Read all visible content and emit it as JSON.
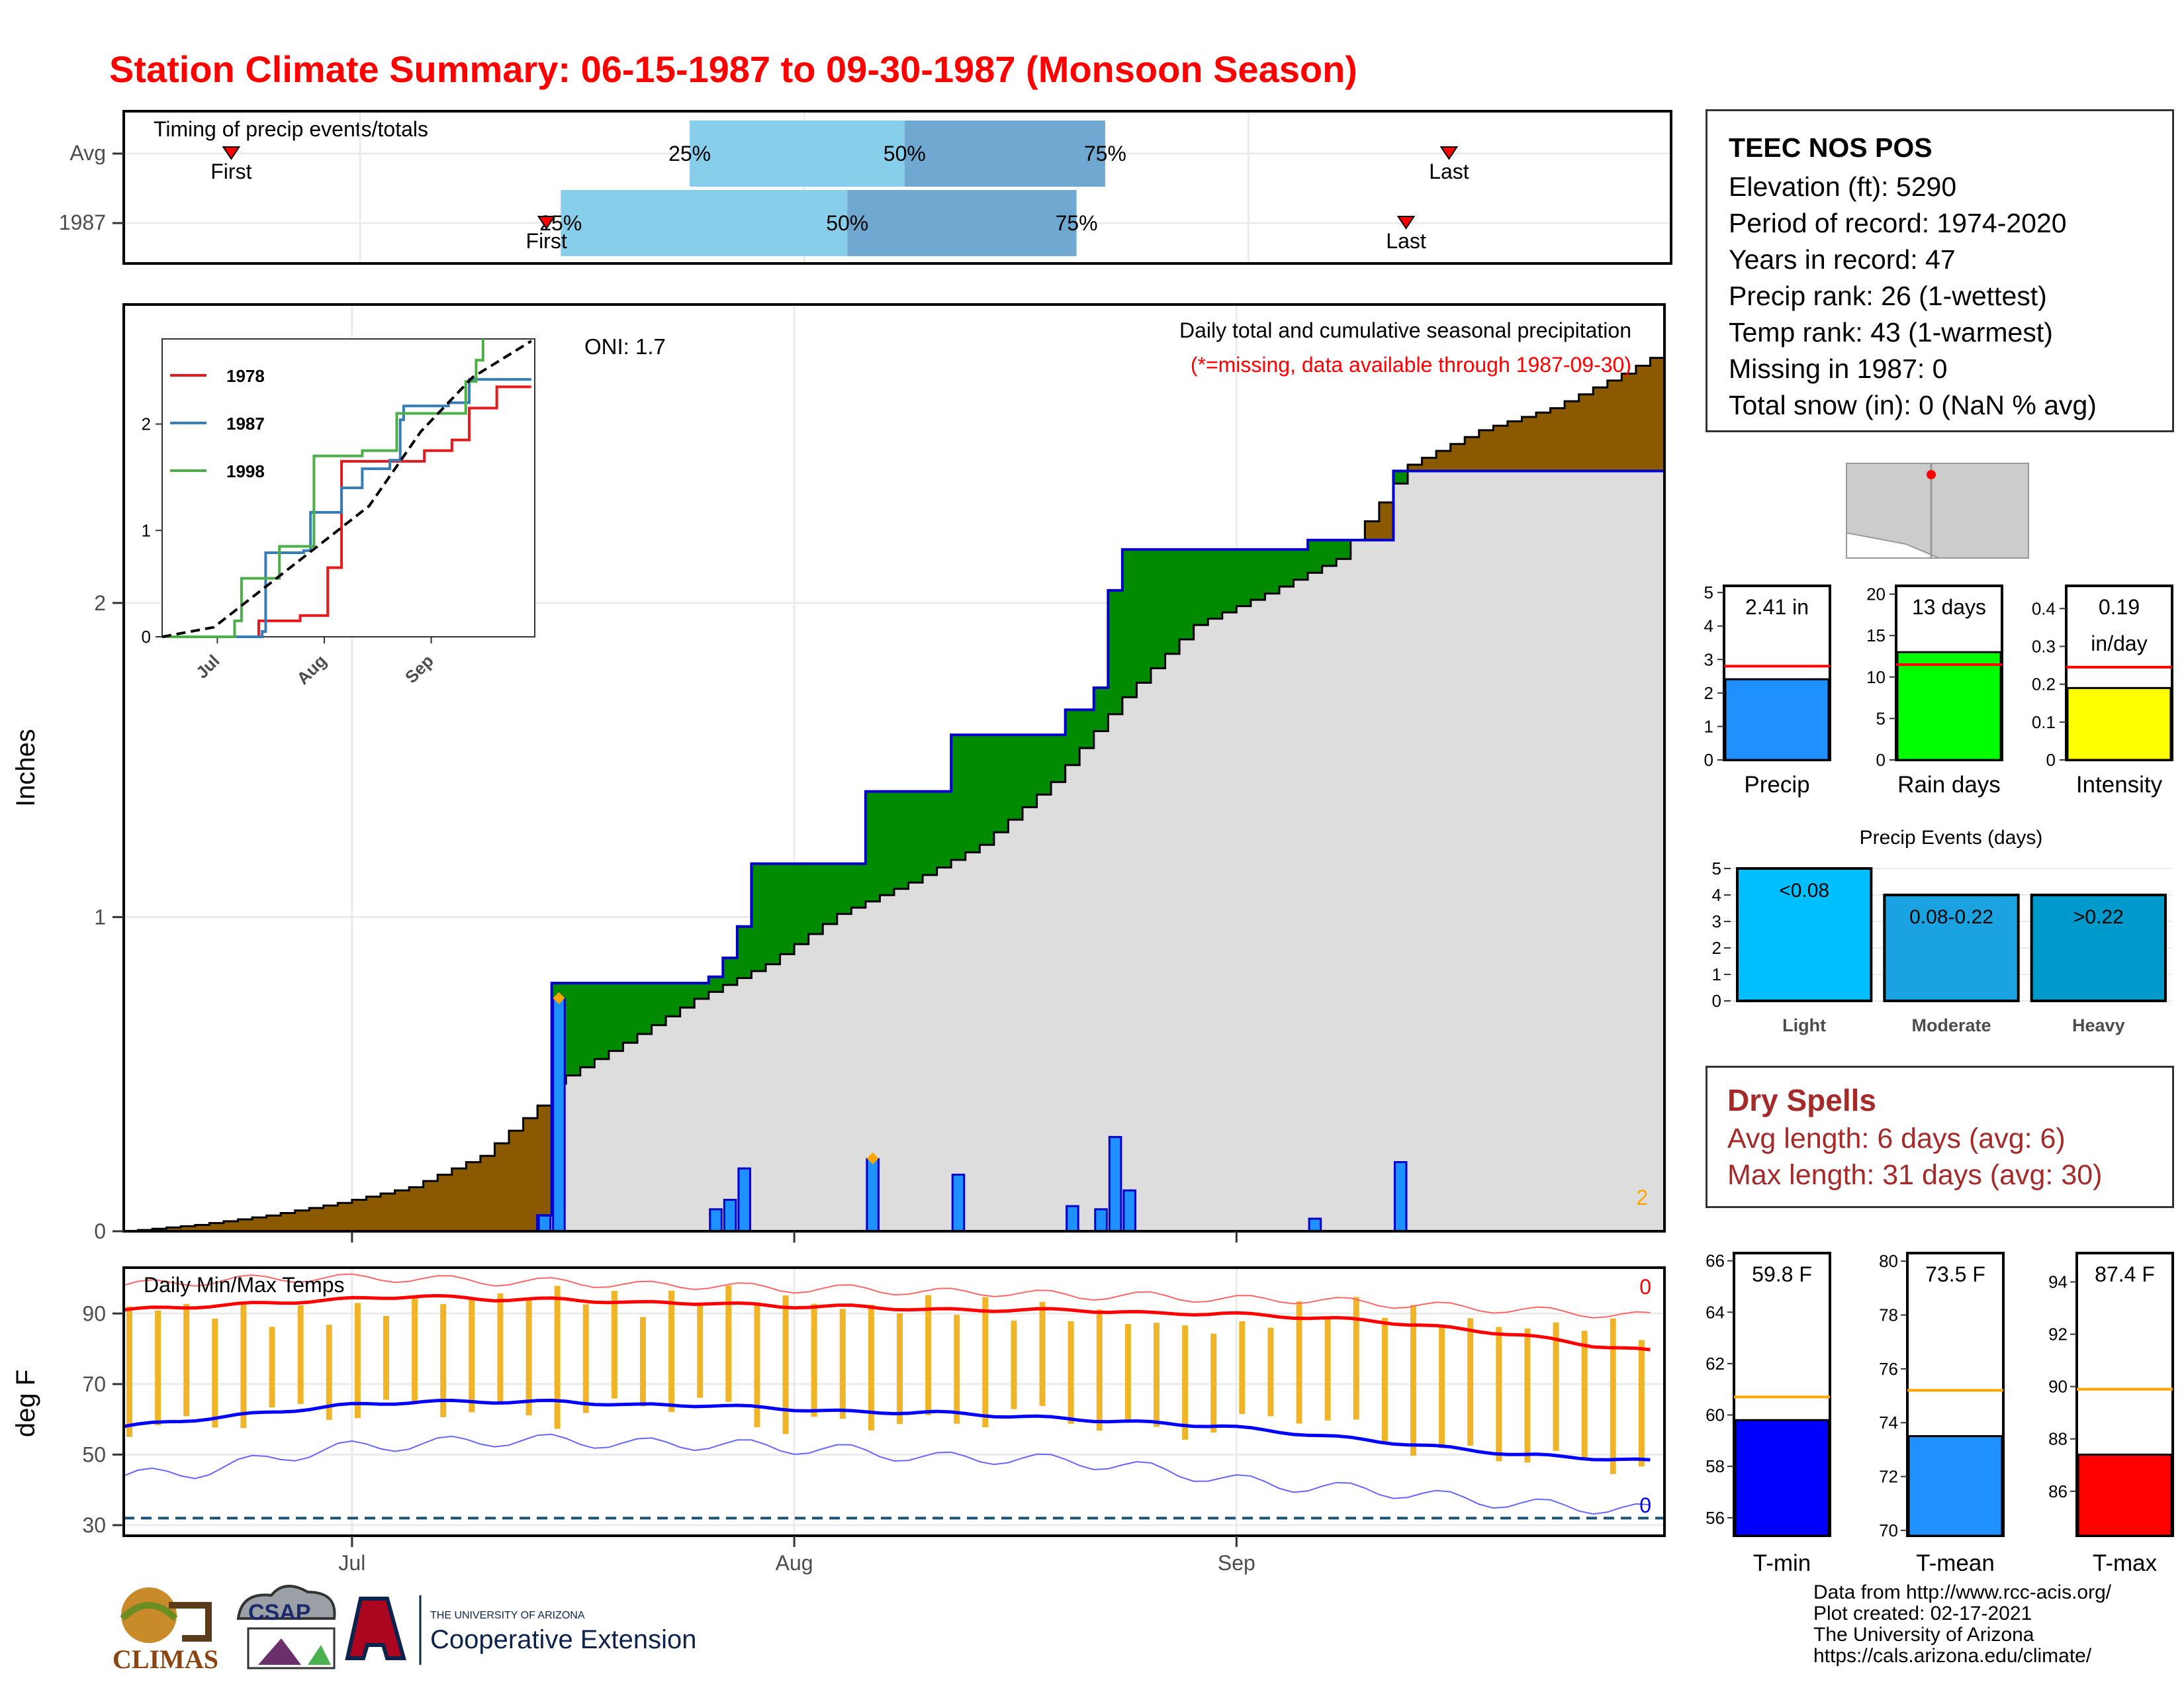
{
  "title": "Station Climate Summary: 06-15-1987 to 09-30-1987 (Monsoon Season)",
  "station": {
    "name": "TEEC NOS POS",
    "lines": [
      "Elevation (ft): 5290",
      "Period of record: 1974-2020",
      "Years in record: 47",
      "Precip rank: 26 (1-wettest)",
      "Temp rank: 43 (1-warmest)",
      "Missing in 1987: 0",
      "Total snow (in): 0 (NaN % avg)"
    ]
  },
  "dry_spells": {
    "title": "Dry Spells",
    "lines": [
      "Avg length: 6 days (avg: 6)",
      "Max length: 31 days (avg: 30)"
    ]
  },
  "credits": [
    "Data from http://www.rcc-acis.org/",
    "Plot created: 02-17-2021",
    "The University of Arizona",
    "https://cals.arizona.edu/climate/"
  ],
  "logos": {
    "climas": "CLIMAS",
    "csap": "CSAP",
    "ua_small": "THE UNIVERSITY OF ARIZONA",
    "ua_big": "Cooperative Extension"
  },
  "colors": {
    "title": "#ff0000",
    "deficit": "#8b5a00",
    "surplus": "#008b00",
    "daily_bar": "#1e90ff",
    "cum_fill": "#dddddd",
    "tmax": "#ff0000",
    "tmin": "#0000ff",
    "temp_bar": "#f0b429",
    "dry_spells": "#a52a2a"
  },
  "chart_data": [
    {
      "id": "timing",
      "type": "range",
      "title": "Timing of precip events/totals",
      "rows": [
        {
          "label": "Avg",
          "first": "06-22",
          "p25": "07-24",
          "p50": "08-08",
          "p75": "08-22",
          "last": "09-15"
        },
        {
          "label": "1987",
          "first": "07-14",
          "p25": "07-15",
          "p50": "08-04",
          "p75": "08-20",
          "last": "09-12"
        }
      ],
      "marker_labels": [
        "First",
        "Last"
      ],
      "pct_labels": [
        "25%",
        "50%",
        "75%"
      ]
    },
    {
      "id": "precip",
      "type": "area",
      "title": "Daily total and cumulative seasonal precipitation",
      "subtitle": "(*=missing, data available through 1987-09-30)",
      "oni": "ONI: 1.7",
      "ylabel": "Inches",
      "ylim": [
        0,
        2.95
      ],
      "yticks": [
        0,
        1,
        2
      ],
      "xticks": [
        {
          "label": "Jul",
          "date": "07-01"
        },
        {
          "label": "Aug",
          "date": "08-01"
        },
        {
          "label": "Sep",
          "date": "09-01"
        }
      ],
      "corner_label": "2",
      "avg_cumulative": [
        [
          "06-15",
          0.0
        ],
        [
          "06-20",
          0.02
        ],
        [
          "06-25",
          0.05
        ],
        [
          "06-30",
          0.09
        ],
        [
          "07-05",
          0.14
        ],
        [
          "07-10",
          0.24
        ],
        [
          "07-14",
          0.4
        ],
        [
          "07-15",
          0.47
        ],
        [
          "07-20",
          0.6
        ],
        [
          "07-25",
          0.74
        ],
        [
          "07-30",
          0.85
        ],
        [
          "08-04",
          1.01
        ],
        [
          "08-09",
          1.11
        ],
        [
          "08-14",
          1.23
        ],
        [
          "08-19",
          1.43
        ],
        [
          "08-24",
          1.7
        ],
        [
          "08-29",
          1.93
        ],
        [
          "09-03",
          2.03
        ],
        [
          "09-08",
          2.14
        ],
        [
          "09-13",
          2.44
        ],
        [
          "09-18",
          2.55
        ],
        [
          "09-23",
          2.62
        ],
        [
          "09-28",
          2.73
        ],
        [
          "09-30",
          2.78
        ]
      ],
      "obs_cumulative": [
        [
          "06-15",
          0.0
        ],
        [
          "07-14",
          0.05
        ],
        [
          "07-15",
          0.79
        ],
        [
          "07-25",
          0.79
        ],
        [
          "07-26",
          0.81
        ],
        [
          "07-27",
          0.87
        ],
        [
          "07-28",
          0.97
        ],
        [
          "07-29",
          1.17
        ],
        [
          "08-05",
          1.17
        ],
        [
          "08-06",
          1.4
        ],
        [
          "08-11",
          1.4
        ],
        [
          "08-12",
          1.58
        ],
        [
          "08-19",
          1.58
        ],
        [
          "08-20",
          1.66
        ],
        [
          "08-21",
          1.66
        ],
        [
          "08-22",
          1.73
        ],
        [
          "08-23",
          2.04
        ],
        [
          "08-24",
          2.17
        ],
        [
          "09-05",
          2.17
        ],
        [
          "09-06",
          2.2
        ],
        [
          "09-11",
          2.2
        ],
        [
          "09-12",
          2.42
        ],
        [
          "09-30",
          2.42
        ]
      ],
      "daily_bars": [
        {
          "date": "07-14",
          "value": 0.05
        },
        {
          "date": "07-15",
          "value": 0.74,
          "marker": true
        },
        {
          "date": "07-26",
          "value": 0.07
        },
        {
          "date": "07-27",
          "value": 0.1
        },
        {
          "date": "07-28",
          "value": 0.2
        },
        {
          "date": "08-06",
          "value": 0.23,
          "marker": true
        },
        {
          "date": "08-12",
          "value": 0.18
        },
        {
          "date": "08-20",
          "value": 0.08
        },
        {
          "date": "08-22",
          "value": 0.07
        },
        {
          "date": "08-23",
          "value": 0.3
        },
        {
          "date": "08-24",
          "value": 0.13
        },
        {
          "date": "09-06",
          "value": 0.04
        },
        {
          "date": "09-12",
          "value": 0.22
        }
      ]
    },
    {
      "id": "inset",
      "type": "line",
      "yticks": [
        0,
        1,
        2
      ],
      "ylim": [
        0,
        2.8
      ],
      "xticks": [
        "Jul",
        "Aug",
        "Sep"
      ],
      "series": [
        {
          "name": "1978",
          "color": "#e41a1c",
          "points": [
            [
              "06-15",
              0
            ],
            [
              "07-01",
              0
            ],
            [
              "07-13",
              0.15
            ],
            [
              "07-15",
              0.15
            ],
            [
              "07-25",
              0.2
            ],
            [
              "08-01",
              0.2
            ],
            [
              "08-02",
              0.65
            ],
            [
              "08-05",
              0.65
            ],
            [
              "08-06",
              1.65
            ],
            [
              "08-25",
              1.65
            ],
            [
              "08-29",
              1.65
            ],
            [
              "08-30",
              1.75
            ],
            [
              "09-03",
              1.75
            ],
            [
              "09-07",
              1.85
            ],
            [
              "09-08",
              1.85
            ],
            [
              "09-12",
              2.15
            ],
            [
              "09-20",
              2.35
            ],
            [
              "09-30",
              2.35
            ]
          ]
        },
        {
          "name": "1987",
          "color": "#377eb8",
          "points": [
            [
              "06-15",
              0
            ],
            [
              "07-14",
              0.05
            ],
            [
              "07-15",
              0.79
            ],
            [
              "07-26",
              0.81
            ],
            [
              "07-28",
              1.17
            ],
            [
              "08-06",
              1.4
            ],
            [
              "08-12",
              1.58
            ],
            [
              "08-20",
              1.66
            ],
            [
              "08-23",
              2.04
            ],
            [
              "08-24",
              2.17
            ],
            [
              "09-06",
              2.2
            ],
            [
              "09-12",
              2.42
            ],
            [
              "09-30",
              2.42
            ]
          ]
        },
        {
          "name": "1998",
          "color": "#4daf4a",
          "points": [
            [
              "06-15",
              0
            ],
            [
              "07-06",
              0.15
            ],
            [
              "07-08",
              0.55
            ],
            [
              "07-18",
              0.55
            ],
            [
              "07-19",
              0.85
            ],
            [
              "07-28",
              0.85
            ],
            [
              "07-29",
              1.7
            ],
            [
              "08-10",
              1.7
            ],
            [
              "08-12",
              1.75
            ],
            [
              "08-20",
              1.75
            ],
            [
              "08-22",
              2.1
            ],
            [
              "09-10",
              2.1
            ],
            [
              "09-11",
              2.4
            ],
            [
              "09-14",
              2.6
            ],
            [
              "09-16",
              2.8
            ]
          ]
        }
      ],
      "average": [
        [
          "06-15",
          0
        ],
        [
          "06-30",
          0.09
        ],
        [
          "07-15",
          0.47
        ],
        [
          "07-30",
          0.85
        ],
        [
          "08-14",
          1.23
        ],
        [
          "08-29",
          1.93
        ],
        [
          "09-13",
          2.44
        ],
        [
          "09-30",
          2.78
        ]
      ]
    },
    {
      "id": "temps",
      "type": "line",
      "title": "Daily Min/Max Temps",
      "ylabel": "deg F",
      "ylim": [
        27,
        103
      ],
      "yticks": [
        30,
        50,
        70,
        90
      ],
      "xticks": [
        {
          "label": "Jul",
          "date": "07-01"
        },
        {
          "label": "Aug",
          "date": "08-01"
        },
        {
          "label": "Sep",
          "date": "09-01"
        }
      ],
      "count_top": "0",
      "count_bottom": "0",
      "freeze_line": 32,
      "avg_max": [
        91,
        92,
        93,
        94,
        95,
        94,
        94,
        93,
        93,
        92,
        92,
        91,
        91,
        91,
        90,
        90,
        89,
        88,
        86,
        84,
        81,
        79
      ],
      "avg_min": [
        58,
        60,
        62,
        64,
        65,
        65,
        65,
        64,
        64,
        63,
        62,
        62,
        61,
        60,
        59,
        58,
        56,
        54,
        52,
        50,
        49,
        48
      ],
      "rec_max": [
        98,
        99,
        100,
        100,
        100,
        99,
        99,
        98,
        98,
        97,
        97,
        96,
        96,
        95,
        95,
        94,
        94,
        93,
        92,
        91,
        90,
        89
      ],
      "rec_min": [
        44,
        45,
        49,
        52,
        53,
        54,
        54,
        53,
        53,
        52,
        51,
        49,
        49,
        48,
        46,
        43,
        41,
        40,
        38,
        36,
        35,
        34
      ],
      "obs_max": [
        92,
        91,
        89,
        90,
        93,
        95,
        96,
        92,
        96,
        94,
        91,
        93,
        91,
        90,
        87,
        85,
        91,
        92,
        88,
        86,
        87,
        84
      ],
      "obs_min": [
        58,
        58,
        62,
        62,
        64,
        62,
        60,
        65,
        64,
        57,
        60,
        58,
        62,
        60,
        56,
        58,
        62,
        55,
        50,
        50,
        47,
        48
      ]
    },
    {
      "id": "precip_summary",
      "type": "bar",
      "panels": [
        {
          "label": "Precip",
          "value": 2.41,
          "avg": 2.8,
          "ylim": [
            0,
            5.2
          ],
          "yticks": [
            0,
            1,
            2,
            3,
            4,
            5
          ],
          "text1": "2.41 in",
          "text2": "",
          "color": "#1e90ff"
        },
        {
          "label": "Rain days",
          "value": 13,
          "avg": 11.5,
          "ylim": [
            0,
            21
          ],
          "yticks": [
            0,
            5,
            10,
            15,
            20
          ],
          "text1": "13 days",
          "text2": "",
          "color": "#00ff00"
        },
        {
          "label": "Intensity",
          "value": 0.19,
          "avg": 0.245,
          "ylim": [
            0,
            0.46
          ],
          "yticks": [
            0.0,
            0.1,
            0.2,
            0.3,
            0.4
          ],
          "text1": "0.19",
          "text2": "in/day",
          "color": "#ffff00"
        }
      ]
    },
    {
      "id": "precip_events",
      "type": "bar",
      "title": "Precip Events (days)",
      "categories": [
        "Light",
        "Moderate",
        "Heavy"
      ],
      "labels": [
        "<0.08",
        "0.08-0.22",
        ">0.22"
      ],
      "values": [
        5,
        4,
        4
      ],
      "colors": [
        "#00bfff",
        "#1aa3e0",
        "#0099cc"
      ],
      "ylim": [
        0,
        5.3
      ],
      "yticks": [
        0,
        1,
        2,
        3,
        4,
        5
      ]
    },
    {
      "id": "temp_summary",
      "type": "bar",
      "panels": [
        {
          "label": "T-min",
          "value": 59.8,
          "avg": 60.7,
          "ylim": [
            55.3,
            66.3
          ],
          "yticks": [
            56,
            58,
            60,
            62,
            64,
            66
          ],
          "text": "59.8 F",
          "color": "#0000ff"
        },
        {
          "label": "T-mean",
          "value": 73.5,
          "avg": 75.2,
          "ylim": [
            69.8,
            80.3
          ],
          "yticks": [
            70,
            72,
            74,
            76,
            78,
            80
          ],
          "text": "73.5 F",
          "color": "#1e90ff"
        },
        {
          "label": "T-max",
          "value": 87.4,
          "avg": 89.9,
          "ylim": [
            84.3,
            95.1
          ],
          "yticks": [
            86,
            88,
            90,
            92,
            94
          ],
          "text": "87.4 F",
          "color": "#ff0000"
        }
      ]
    }
  ]
}
